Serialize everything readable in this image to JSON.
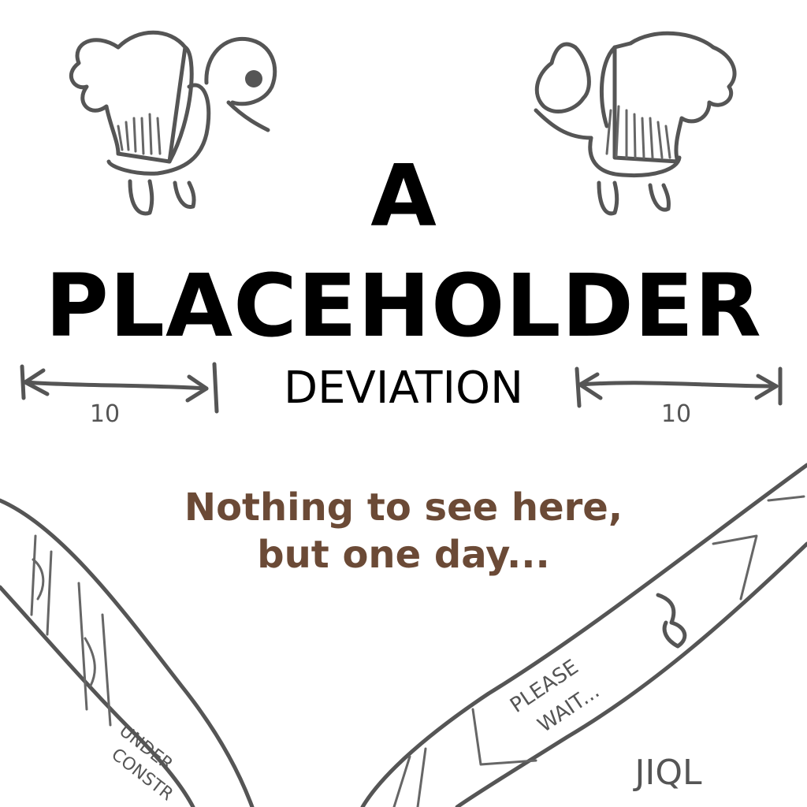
{
  "heading": {
    "line1": "A",
    "line2": "PLACEHOLDER",
    "subtitle": "DEVIATION"
  },
  "message": {
    "line1": "Nothing to see here,",
    "line2": "but one day...",
    "color": "#6b4a36"
  },
  "sketch": {
    "left_measure": "10",
    "right_measure": "10",
    "tape_left_text_1": "UNDER",
    "tape_left_text_2": "CONSTR",
    "tape_right_text_1": "PLEASE",
    "tape_right_text_2": "WAIT...",
    "signature": "JIQL",
    "stroke_color": "#555555"
  }
}
